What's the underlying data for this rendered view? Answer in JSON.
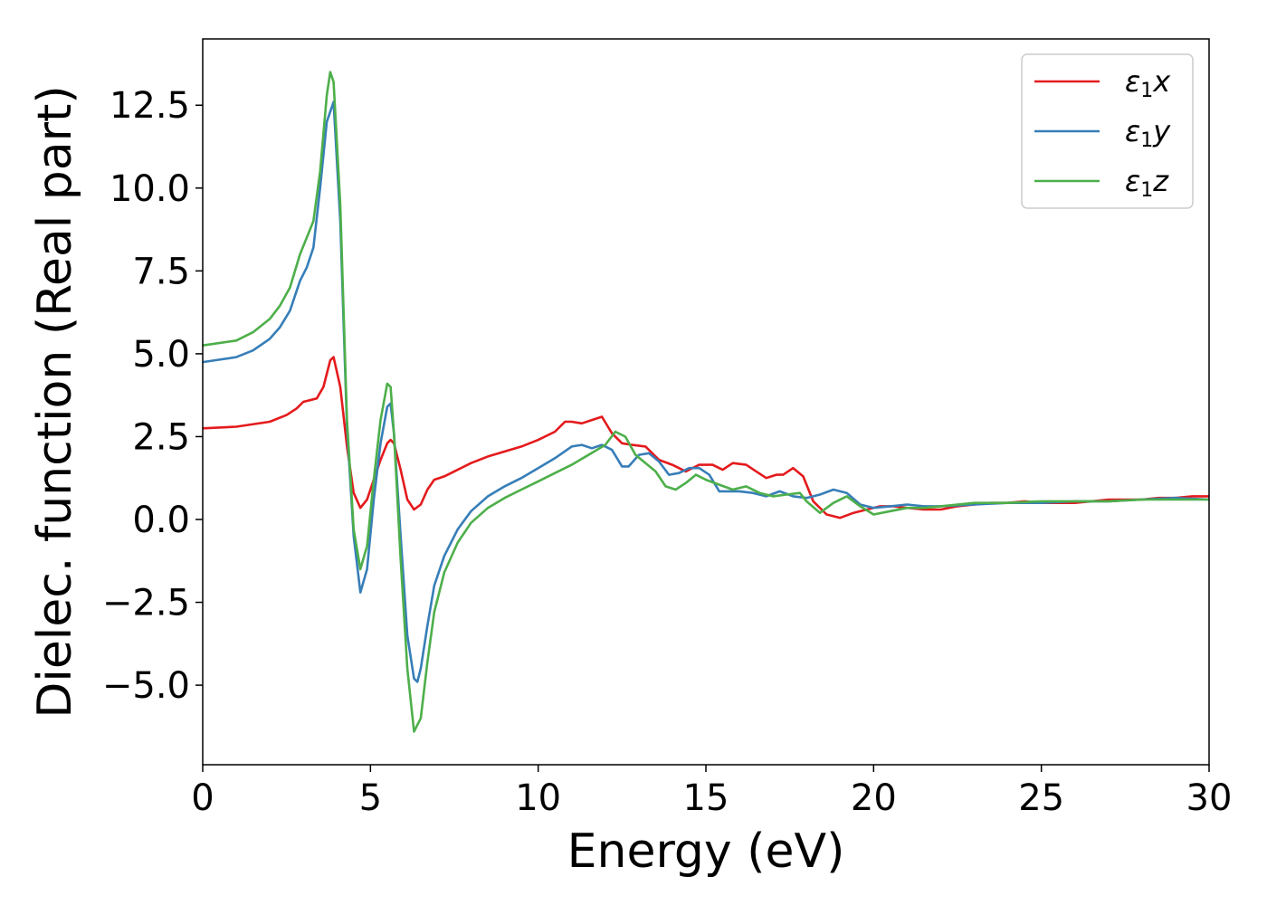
{
  "chart_data": {
    "type": "line",
    "title": "",
    "xlabel": "Energy (eV)",
    "ylabel": "Dielec. function (Real part)",
    "xlim": [
      0,
      30
    ],
    "ylim": [
      -7.4,
      14.5
    ],
    "xticks": [
      0,
      5,
      10,
      15,
      20,
      25,
      30
    ],
    "xtick_labels": [
      "0",
      "5",
      "10",
      "15",
      "20",
      "25",
      "30"
    ],
    "yticks": [
      -5.0,
      -2.5,
      0.0,
      2.5,
      5.0,
      7.5,
      10.0,
      12.5
    ],
    "ytick_labels": [
      "−5.0",
      "−2.5",
      "0.0",
      "2.5",
      "5.0",
      "7.5",
      "10.0",
      "12.5"
    ],
    "grid": false,
    "legend_position": "top-right",
    "series": [
      {
        "name": "x",
        "legend_base": "ε",
        "legend_sub": "1",
        "legend_comp": "x",
        "color": "#e41a1c",
        "x": [
          0,
          1,
          2,
          2.5,
          2.8,
          3.0,
          3.2,
          3.4,
          3.6,
          3.8,
          3.9,
          4.1,
          4.3,
          4.5,
          4.7,
          4.9,
          5.1,
          5.3,
          5.5,
          5.6,
          5.7,
          5.9,
          6.1,
          6.3,
          6.5,
          6.7,
          6.9,
          7.2,
          7.6,
          8,
          8.5,
          9,
          9.5,
          10,
          10.5,
          10.8,
          11,
          11.3,
          11.6,
          11.9,
          12.2,
          12.5,
          12.8,
          13.2,
          13.6,
          14,
          14.4,
          14.8,
          15.2,
          15.5,
          15.8,
          16.2,
          16.5,
          16.8,
          17.1,
          17.3,
          17.6,
          17.9,
          18.2,
          18.6,
          19,
          19.4,
          19.8,
          20.2,
          20.6,
          21,
          21.5,
          22,
          22.5,
          23,
          23.5,
          24,
          24.5,
          25,
          25.5,
          26,
          26.5,
          27,
          27.5,
          28,
          28.5,
          29,
          29.5,
          30
        ],
        "y": [
          2.75,
          2.8,
          2.95,
          3.15,
          3.35,
          3.55,
          3.6,
          3.65,
          4.0,
          4.8,
          4.9,
          4.0,
          2.2,
          0.8,
          0.35,
          0.6,
          1.2,
          1.8,
          2.3,
          2.4,
          2.3,
          1.5,
          0.6,
          0.3,
          0.45,
          0.9,
          1.2,
          1.3,
          1.5,
          1.7,
          1.9,
          2.05,
          2.2,
          2.4,
          2.65,
          2.95,
          2.95,
          2.9,
          3.0,
          3.1,
          2.6,
          2.3,
          2.25,
          2.2,
          1.8,
          1.65,
          1.45,
          1.65,
          1.65,
          1.5,
          1.7,
          1.65,
          1.45,
          1.25,
          1.35,
          1.35,
          1.55,
          1.3,
          0.55,
          0.15,
          0.05,
          0.2,
          0.3,
          0.4,
          0.4,
          0.35,
          0.3,
          0.3,
          0.4,
          0.45,
          0.5,
          0.5,
          0.55,
          0.5,
          0.5,
          0.5,
          0.55,
          0.6,
          0.6,
          0.6,
          0.65,
          0.65,
          0.7,
          0.7
        ]
      },
      {
        "name": "y",
        "legend_base": "ε",
        "legend_sub": "1",
        "legend_comp": "y",
        "color": "#377eb8",
        "x": [
          0,
          1,
          1.5,
          2,
          2.3,
          2.6,
          2.9,
          3.1,
          3.3,
          3.5,
          3.7,
          3.9,
          4.1,
          4.3,
          4.5,
          4.7,
          4.9,
          5.1,
          5.3,
          5.5,
          5.6,
          5.7,
          5.9,
          6.1,
          6.3,
          6.4,
          6.5,
          6.7,
          6.9,
          7.2,
          7.6,
          8,
          8.5,
          9,
          9.5,
          10,
          10.5,
          11,
          11.3,
          11.6,
          11.9,
          12.2,
          12.5,
          12.7,
          13,
          13.3,
          13.6,
          13.9,
          14.2,
          14.5,
          14.8,
          15.1,
          15.4,
          15.7,
          16,
          16.4,
          16.8,
          17.2,
          17.6,
          18,
          18.4,
          18.8,
          19.2,
          19.6,
          20,
          20.5,
          21,
          21.5,
          22,
          23,
          24,
          25,
          26,
          27,
          28,
          29,
          30
        ],
        "y": [
          4.75,
          4.9,
          5.1,
          5.45,
          5.8,
          6.3,
          7.2,
          7.6,
          8.2,
          10.0,
          12.0,
          12.6,
          9.0,
          2.8,
          -0.5,
          -2.2,
          -1.5,
          0.6,
          2.3,
          3.4,
          3.5,
          2.6,
          -0.5,
          -3.5,
          -4.8,
          -4.9,
          -4.5,
          -3.2,
          -2.0,
          -1.1,
          -0.3,
          0.25,
          0.7,
          1.0,
          1.25,
          1.55,
          1.85,
          2.2,
          2.25,
          2.15,
          2.25,
          2.1,
          1.6,
          1.6,
          1.95,
          2.0,
          1.75,
          1.35,
          1.4,
          1.55,
          1.55,
          1.35,
          0.85,
          0.85,
          0.85,
          0.8,
          0.7,
          0.85,
          0.7,
          0.65,
          0.75,
          0.9,
          0.8,
          0.45,
          0.35,
          0.4,
          0.45,
          0.4,
          0.4,
          0.45,
          0.5,
          0.5,
          0.55,
          0.55,
          0.6,
          0.65,
          0.6
        ]
      },
      {
        "name": "z",
        "legend_base": "ε",
        "legend_sub": "1",
        "legend_comp": "z",
        "color": "#4daf4a",
        "x": [
          0,
          1,
          1.5,
          2,
          2.3,
          2.6,
          2.9,
          3.1,
          3.3,
          3.5,
          3.7,
          3.8,
          3.9,
          4.1,
          4.3,
          4.5,
          4.7,
          4.9,
          5.1,
          5.3,
          5.5,
          5.6,
          5.7,
          5.9,
          6.1,
          6.3,
          6.5,
          6.7,
          6.9,
          7.2,
          7.6,
          8,
          8.5,
          9,
          9.5,
          10,
          10.5,
          11,
          11.5,
          12,
          12.3,
          12.6,
          12.9,
          13.2,
          13.5,
          13.8,
          14.1,
          14.4,
          14.7,
          15,
          15.4,
          15.8,
          16.2,
          16.6,
          17,
          17.4,
          17.8,
          18,
          18.4,
          18.8,
          19.2,
          19.6,
          20,
          20.5,
          21,
          21.5,
          22,
          23,
          24,
          25,
          26,
          27,
          28,
          29,
          30
        ],
        "y": [
          5.25,
          5.4,
          5.65,
          6.05,
          6.45,
          7.0,
          8.0,
          8.5,
          9.0,
          10.5,
          12.8,
          13.5,
          13.2,
          9.5,
          3.0,
          -0.3,
          -1.5,
          -0.8,
          1.2,
          3.0,
          4.1,
          4.0,
          2.6,
          -1.2,
          -4.5,
          -6.4,
          -6.0,
          -4.3,
          -2.8,
          -1.6,
          -0.7,
          -0.1,
          0.35,
          0.65,
          0.9,
          1.15,
          1.4,
          1.65,
          1.95,
          2.25,
          2.65,
          2.5,
          1.95,
          1.7,
          1.45,
          1.0,
          0.9,
          1.1,
          1.35,
          1.2,
          1.05,
          0.9,
          1.0,
          0.8,
          0.7,
          0.75,
          0.8,
          0.55,
          0.2,
          0.5,
          0.7,
          0.4,
          0.15,
          0.25,
          0.35,
          0.35,
          0.4,
          0.5,
          0.5,
          0.55,
          0.55,
          0.55,
          0.6,
          0.6,
          0.6
        ]
      }
    ]
  }
}
